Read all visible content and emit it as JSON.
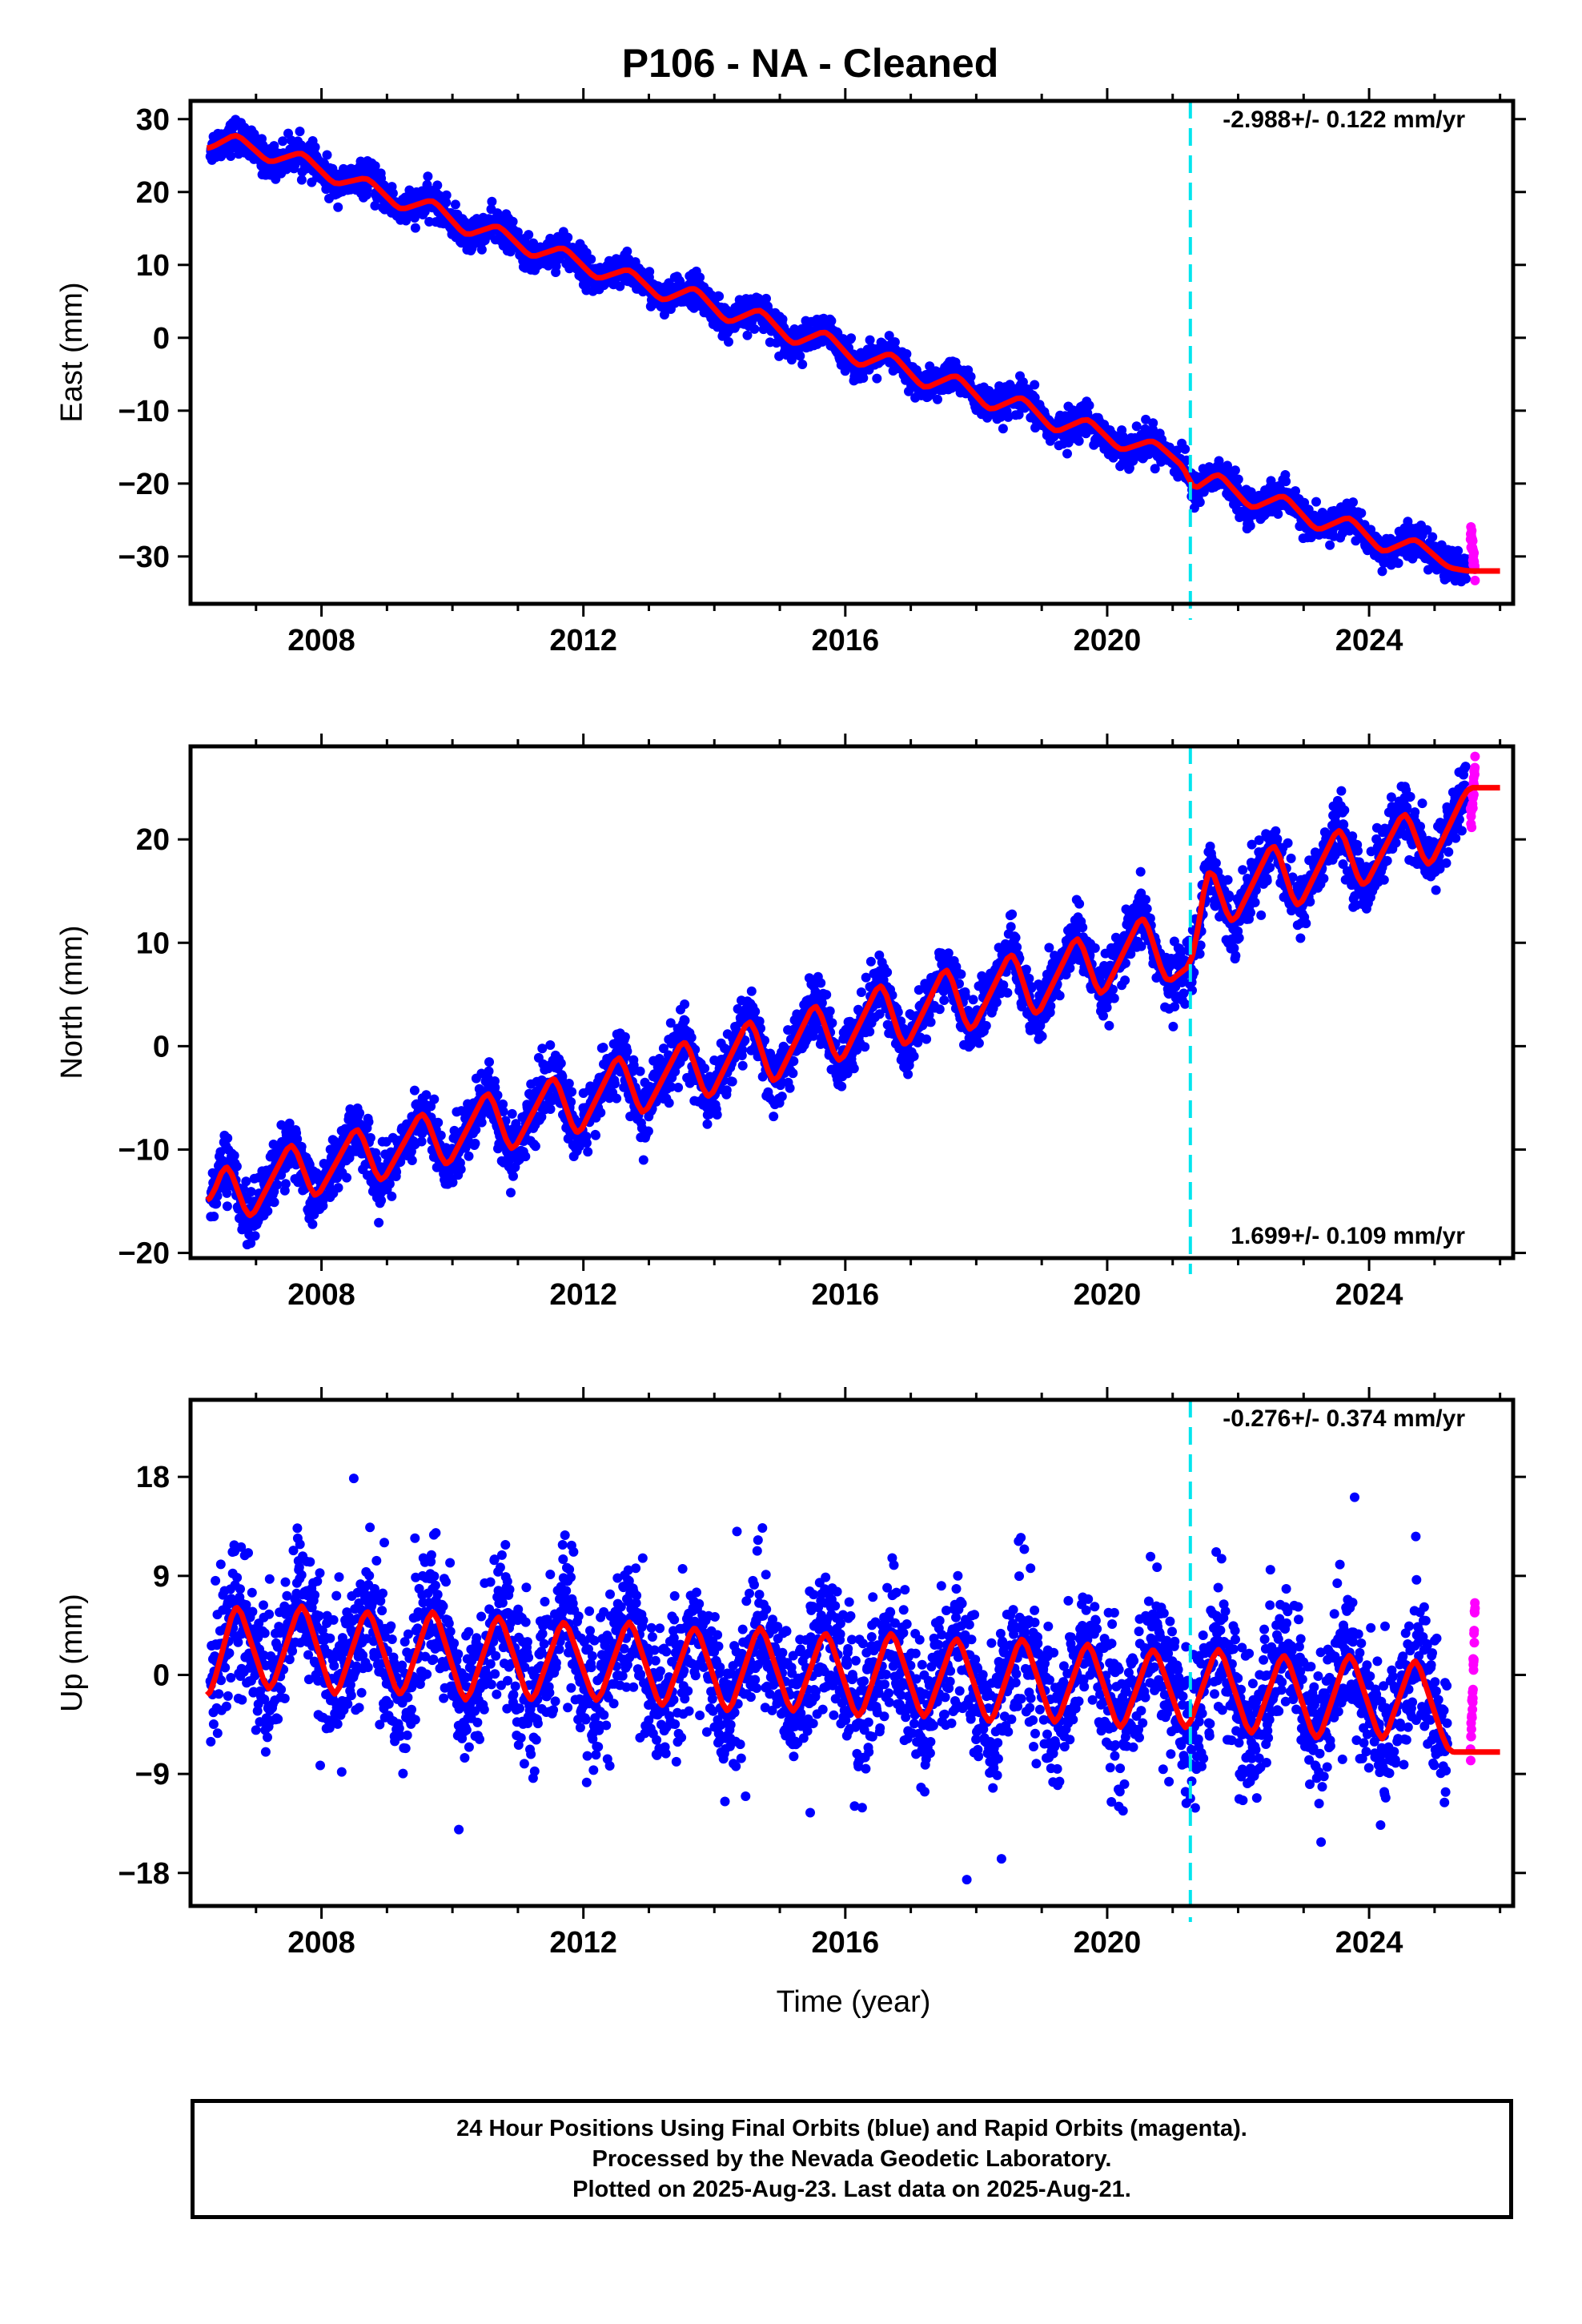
{
  "title": "P106  - NA - Cleaned",
  "xlabel": "Time (year)",
  "footer": {
    "line1": "24 Hour Positions Using Final Orbits (blue) and Rapid Orbits (magenta).",
    "line2": "Processed by the Nevada Geodetic Laboratory.",
    "line3": "Plotted on 2025-Aug-23. Last data on 2025-Aug-21."
  },
  "colors": {
    "final_orbits": "#0000ff",
    "rapid_orbits": "#ff00ff",
    "model": "#ff0000",
    "equipment_change": "#00e5ee"
  },
  "chart_data": [
    {
      "type": "scatter",
      "panel": "east",
      "ylabel": "East (mm)",
      "rate_label": "-2.988+/- 0.122 mm/yr",
      "rate_position": "top-right",
      "xlim": [
        2006.0,
        2026.2
      ],
      "ylim": [
        -36.5,
        32.5
      ],
      "x_ticks": [
        2008,
        2012,
        2016,
        2020,
        2024
      ],
      "y_ticks": [
        30,
        20,
        10,
        0,
        -10,
        -20,
        -30
      ],
      "series": [
        {
          "name": "Final Orbits",
          "color": "#0000ff",
          "x": [
            2006.3,
            2006.7,
            2007.2,
            2007.7,
            2008.2,
            2008.7,
            2009.2,
            2009.7,
            2010.2,
            2010.7,
            2011.2,
            2011.7,
            2012.2,
            2012.7,
            2013.2,
            2013.7,
            2014.2,
            2014.7,
            2015.2,
            2015.7,
            2016.2,
            2016.7,
            2017.2,
            2017.7,
            2018.2,
            2018.7,
            2019.2,
            2019.7,
            2020.2,
            2020.7,
            2021.2,
            2021.3,
            2021.7,
            2022.2,
            2022.7,
            2023.2,
            2023.7,
            2024.2,
            2024.7,
            2025.2,
            2025.5
          ],
          "y": [
            26,
            28,
            24,
            25.5,
            21,
            22,
            17.5,
            19,
            14,
            15.5,
            11,
            12.5,
            8,
            9.5,
            5,
            7,
            2,
            4,
            -1,
            1,
            -4,
            -2,
            -7,
            -5,
            -10,
            -8,
            -13,
            -11,
            -15.5,
            -14,
            -18,
            -21,
            -18.5,
            -23.5,
            -21.5,
            -26.5,
            -24.5,
            -29.5,
            -27.5,
            -31.5,
            -32
          ]
        },
        {
          "name": "Rapid Orbits",
          "color": "#ff00ff",
          "x": [
            2025.55,
            2025.6,
            2025.62
          ],
          "y": [
            -27,
            -30,
            -32
          ]
        },
        {
          "name": "Model",
          "color": "#ff0000",
          "type": "line",
          "x": [
            2006.25,
            2026
          ],
          "trend_mm_per_yr": -2.988,
          "annual_amplitude": 1.8
        }
      ]
    },
    {
      "type": "scatter",
      "panel": "north",
      "ylabel": "North (mm)",
      "rate_label": "1.699+/- 0.109 mm/yr",
      "rate_position": "bottom-right",
      "xlim": [
        2006.0,
        2026.2
      ],
      "ylim": [
        -20.5,
        29
      ],
      "x_ticks": [
        2008,
        2012,
        2016,
        2020,
        2024
      ],
      "y_ticks": [
        20,
        10,
        0,
        -10,
        -20
      ],
      "series": [
        {
          "name": "Final Orbits",
          "color": "#0000ff",
          "x": [
            2006.3,
            2006.55,
            2006.9,
            2007.55,
            2007.9,
            2008.55,
            2008.9,
            2009.55,
            2009.9,
            2010.55,
            2010.9,
            2011.55,
            2011.9,
            2012.55,
            2012.9,
            2013.55,
            2013.9,
            2014.55,
            2014.9,
            2015.55,
            2015.9,
            2016.55,
            2016.9,
            2017.55,
            2017.9,
            2018.55,
            2018.9,
            2019.55,
            2019.9,
            2020.55,
            2020.9,
            2021.3,
            2021.55,
            2021.9,
            2022.55,
            2022.9,
            2023.55,
            2023.9,
            2024.55,
            2024.9,
            2025.5
          ],
          "y": [
            -15,
            -11,
            -17,
            -9,
            -15,
            -7.5,
            -13.5,
            -6,
            -12,
            -4,
            -10.5,
            -2.5,
            -9,
            -0.5,
            -7,
            1,
            -5.5,
            3,
            -4,
            4.5,
            -2,
            6.5,
            -0.5,
            8,
            1,
            9.5,
            2.5,
            11,
            4.5,
            13,
            6,
            8,
            18,
            11.5,
            20,
            13,
            21.5,
            15,
            23,
            17,
            25
          ]
        },
        {
          "name": "Rapid Orbits",
          "color": "#ff00ff",
          "x": [
            2025.55,
            2025.6,
            2025.62
          ],
          "y": [
            22,
            25,
            27.5
          ]
        },
        {
          "name": "Model",
          "color": "#ff0000",
          "type": "line",
          "x": [
            2006.25,
            2026
          ],
          "trend_mm_per_yr": 1.699,
          "annual_amplitude": 3.4
        }
      ]
    },
    {
      "type": "scatter",
      "panel": "up",
      "ylabel": "Up (mm)",
      "rate_label": "-0.276+/- 0.374 mm/yr",
      "rate_position": "top-right",
      "xlim": [
        2006.0,
        2026.2
      ],
      "ylim": [
        -21,
        25
      ],
      "x_ticks": [
        2008,
        2012,
        2016,
        2020,
        2024
      ],
      "y_ticks": [
        18,
        9,
        0,
        -9,
        -18
      ],
      "series": [
        {
          "name": "Final Orbits",
          "color": "#0000ff",
          "x": [
            2006.3,
            2006.7,
            2007.2,
            2007.7,
            2008.2,
            2008.7,
            2009.2,
            2009.7,
            2010.2,
            2010.7,
            2011.2,
            2011.7,
            2012.2,
            2012.7,
            2013.2,
            2013.7,
            2014.2,
            2014.7,
            2015.2,
            2015.7,
            2016.2,
            2016.7,
            2017.2,
            2017.7,
            2018.2,
            2018.7,
            2019.2,
            2019.7,
            2020.2,
            2020.7,
            2021.2,
            2021.7,
            2022.2,
            2022.7,
            2023.2,
            2023.7,
            2024.2,
            2024.7,
            2025.2
          ],
          "y": [
            -2,
            7,
            -2,
            7,
            -2.5,
            6.5,
            -2.5,
            6.5,
            -3,
            6,
            -3,
            5.5,
            -3,
            5.5,
            -3.5,
            5,
            -4,
            5,
            -4,
            4.5,
            -4.5,
            4.5,
            -4.5,
            4,
            -5,
            4,
            -5,
            3.5,
            -5.5,
            3,
            -5.5,
            3,
            -6,
            2.5,
            -6.5,
            2.5,
            -6.5,
            2,
            -7
          ]
        },
        {
          "name": "Rapid Orbits",
          "color": "#ff00ff",
          "x": [
            2025.55,
            2025.6,
            2025.62
          ],
          "y": [
            -7,
            2,
            8
          ]
        },
        {
          "name": "Model",
          "color": "#ff0000",
          "type": "line",
          "x": [
            2006.25,
            2026
          ],
          "trend_mm_per_yr": -0.276,
          "annual_amplitude": 4.6
        }
      ]
    }
  ],
  "equipment_change_year": 2021.27
}
